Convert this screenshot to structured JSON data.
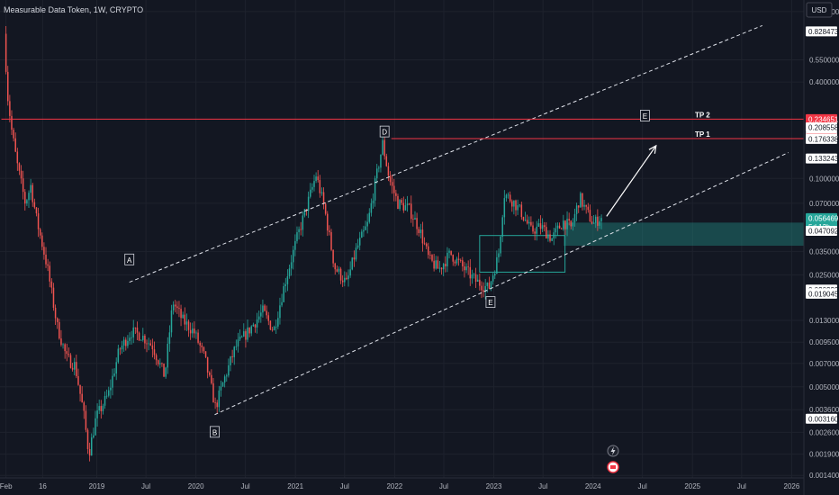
{
  "chart_data": {
    "type": "candlestick",
    "title": "Measurable Data Token, 1W, CRYPTO",
    "currency": "USD",
    "y_scale": "log",
    "ylim": [
      0.00135,
      1.3
    ],
    "xlim": [
      "2018-01-10",
      "2026-02-15"
    ],
    "colors": {
      "up": "#26a69a",
      "down": "#ef5350",
      "background": "#131722",
      "level": "#f23645",
      "last": "#26a69a",
      "wick": "#9b9b9b"
    },
    "x_ticks": [
      {
        "label": "Feb",
        "date": "2018-02-01"
      },
      {
        "label": "16",
        "date": "2018-06-16"
      },
      {
        "label": "2019",
        "date": "2019-01-01"
      },
      {
        "label": "Jul",
        "date": "2019-07-01"
      },
      {
        "label": "2020",
        "date": "2020-01-01"
      },
      {
        "label": "Jul",
        "date": "2020-07-01"
      },
      {
        "label": "2021",
        "date": "2021-01-01"
      },
      {
        "label": "Jul",
        "date": "2021-07-01"
      },
      {
        "label": "2022",
        "date": "2022-01-01"
      },
      {
        "label": "Jul",
        "date": "2022-07-01"
      },
      {
        "label": "2023",
        "date": "2023-01-01"
      },
      {
        "label": "Jul",
        "date": "2023-07-01"
      },
      {
        "label": "2024",
        "date": "2024-01-01"
      },
      {
        "label": "Jul",
        "date": "2024-07-01"
      },
      {
        "label": "2025",
        "date": "2025-01-01"
      },
      {
        "label": "Jul",
        "date": "2025-07-01"
      },
      {
        "label": "2026",
        "date": "2026-01-01"
      }
    ],
    "y_ticks": [
      {
        "label": "1.100000",
        "value": 1.1
      },
      {
        "label": "0.550000",
        "value": 0.55
      },
      {
        "label": "0.400000",
        "value": 0.4
      },
      {
        "label": "0.100000",
        "value": 0.1
      },
      {
        "label": "0.070000",
        "value": 0.07
      },
      {
        "label": "0.035000",
        "value": 0.035
      },
      {
        "label": "0.025000",
        "value": 0.025
      },
      {
        "label": "0.013000",
        "value": 0.013
      },
      {
        "label": "0.009500",
        "value": 0.0095
      },
      {
        "label": "0.007000",
        "value": 0.007
      },
      {
        "label": "0.005000",
        "value": 0.005
      },
      {
        "label": "0.003600",
        "value": 0.0036
      },
      {
        "label": "0.002600",
        "value": 0.0026
      },
      {
        "label": "0.001900",
        "value": 0.0019
      },
      {
        "label": "0.001400",
        "value": 0.0014
      }
    ],
    "price_labels": [
      {
        "label": "0.828473",
        "value": 0.828473,
        "style": "white"
      },
      {
        "label": "0.234651",
        "value": 0.234651,
        "style": "red"
      },
      {
        "label": "0.208558",
        "value": 0.208558,
        "style": "white"
      },
      {
        "label": "0.181097",
        "value": 0.181097,
        "style": "white"
      },
      {
        "label": "0.177262",
        "value": 0.177262,
        "style": "red"
      },
      {
        "label": "0.176338",
        "value": 0.176338,
        "style": "white"
      },
      {
        "label": "0.133243",
        "value": 0.133243,
        "style": "white"
      },
      {
        "label": "0.056469",
        "value": 0.056469,
        "style": "green",
        "sub": "5d 13h"
      },
      {
        "label": "0.047092",
        "value": 0.047092,
        "style": "white"
      },
      {
        "label": "0.020229",
        "value": 0.020229,
        "style": "white"
      },
      {
        "label": "0.019170",
        "value": 0.01917,
        "style": "white"
      },
      {
        "label": "0.019045",
        "value": 0.019045,
        "style": "white"
      },
      {
        "label": "0.003160",
        "value": 0.00316,
        "style": "white"
      }
    ],
    "levels": [
      {
        "name": "TP 2",
        "value": 0.2345,
        "x_start": "2018-01-15"
      },
      {
        "name": "TP 1",
        "value": 0.1772,
        "x_start": "2021-12-20"
      }
    ],
    "channel_lines": [
      {
        "from": [
          "2019-05-01",
          0.0225
        ],
        "to": [
          "2025-09-15",
          0.9
        ]
      },
      {
        "from": [
          "2020-03-10",
          0.00335
        ],
        "to": [
          "2025-12-20",
          0.145
        ]
      }
    ],
    "zones": [
      {
        "x_start": "2023-09-15",
        "x_end": "2026-02-15",
        "y_low": 0.038,
        "y_high": 0.053,
        "color": "rgba(38,166,154,0.35)"
      }
    ],
    "boxes": [
      {
        "x_start": "2022-11-10",
        "x_end": "2023-09-20",
        "y_low": 0.026,
        "y_high": 0.044
      }
    ],
    "arrow": {
      "from": [
        "2024-02-20",
        0.058
      ],
      "to": [
        "2024-08-20",
        0.16
      ]
    },
    "annotations": [
      {
        "text": "A",
        "date": "2019-05-01",
        "value": 0.031,
        "box": true
      },
      {
        "text": "B",
        "date": "2020-03-10",
        "value": 0.0026,
        "box": true
      },
      {
        "text": "D",
        "date": "2021-11-25",
        "value": 0.195,
        "box": true
      },
      {
        "text": "E",
        "date": "2022-12-20",
        "value": 0.0168,
        "box": true
      },
      {
        "text": "E",
        "date": "2024-07-10",
        "value": 0.245,
        "box": true
      },
      {
        "text": "TP 2",
        "date": "2025-01-10",
        "value": 0.2345,
        "box": false
      },
      {
        "text": "TP 1",
        "date": "2025-01-10",
        "value": 0.1772,
        "box": false
      }
    ],
    "price_anchors": [
      [
        "2018-02-01",
        0.8
      ],
      [
        "2018-02-15",
        0.32
      ],
      [
        "2018-03-01",
        0.2
      ],
      [
        "2018-03-20",
        0.125
      ],
      [
        "2018-04-20",
        0.07
      ],
      [
        "2018-05-10",
        0.09
      ],
      [
        "2018-06-01",
        0.055
      ],
      [
        "2018-07-10",
        0.028
      ],
      [
        "2018-08-15",
        0.012
      ],
      [
        "2018-09-20",
        0.0075
      ],
      [
        "2018-10-20",
        0.0068
      ],
      [
        "2018-11-20",
        0.0035
      ],
      [
        "2018-12-10",
        0.0019
      ],
      [
        "2019-01-05",
        0.0032
      ],
      [
        "2019-02-20",
        0.0045
      ],
      [
        "2019-04-01",
        0.0085
      ],
      [
        "2019-05-15",
        0.011
      ],
      [
        "2019-06-20",
        0.0105
      ],
      [
        "2019-08-01",
        0.009
      ],
      [
        "2019-09-15",
        0.0058
      ],
      [
        "2019-10-15",
        0.017
      ],
      [
        "2019-11-20",
        0.013
      ],
      [
        "2020-01-01",
        0.011
      ],
      [
        "2020-02-10",
        0.0075
      ],
      [
        "2020-03-20",
        0.0037
      ],
      [
        "2020-04-20",
        0.0055
      ],
      [
        "2020-06-01",
        0.0088
      ],
      [
        "2020-07-20",
        0.0112
      ],
      [
        "2020-09-10",
        0.0148
      ],
      [
        "2020-10-20",
        0.0112
      ],
      [
        "2020-12-01",
        0.0225
      ],
      [
        "2021-01-15",
        0.043
      ],
      [
        "2021-02-20",
        0.068
      ],
      [
        "2021-03-25",
        0.105
      ],
      [
        "2021-04-25",
        0.065
      ],
      [
        "2021-06-01",
        0.028
      ],
      [
        "2021-07-15",
        0.022
      ],
      [
        "2021-08-20",
        0.036
      ],
      [
        "2021-10-01",
        0.052
      ],
      [
        "2021-11-01",
        0.1
      ],
      [
        "2021-11-25",
        0.165
      ],
      [
        "2021-12-20",
        0.098
      ],
      [
        "2022-01-20",
        0.07
      ],
      [
        "2022-03-01",
        0.065
      ],
      [
        "2022-04-10",
        0.048
      ],
      [
        "2022-05-15",
        0.031
      ],
      [
        "2022-06-20",
        0.027
      ],
      [
        "2022-08-01",
        0.034
      ],
      [
        "2022-09-15",
        0.028
      ],
      [
        "2022-11-01",
        0.023
      ],
      [
        "2022-12-20",
        0.0205
      ],
      [
        "2023-01-25",
        0.033
      ],
      [
        "2023-02-15",
        0.08
      ],
      [
        "2023-03-20",
        0.072
      ],
      [
        "2023-04-20",
        0.061
      ],
      [
        "2023-05-25",
        0.047
      ],
      [
        "2023-07-01",
        0.05
      ],
      [
        "2023-08-10",
        0.042
      ],
      [
        "2023-09-20",
        0.054
      ],
      [
        "2023-10-20",
        0.049
      ],
      [
        "2023-11-20",
        0.076
      ],
      [
        "2023-12-15",
        0.062
      ],
      [
        "2024-01-10",
        0.052
      ],
      [
        "2024-02-01",
        0.0565
      ]
    ],
    "candle_seed": 7
  },
  "header": {
    "title": "Measurable Data Token, 1W, CRYPTO",
    "currency": "USD"
  },
  "icons": {
    "flash": "flash-icon",
    "event": "calendar-event-icon"
  }
}
